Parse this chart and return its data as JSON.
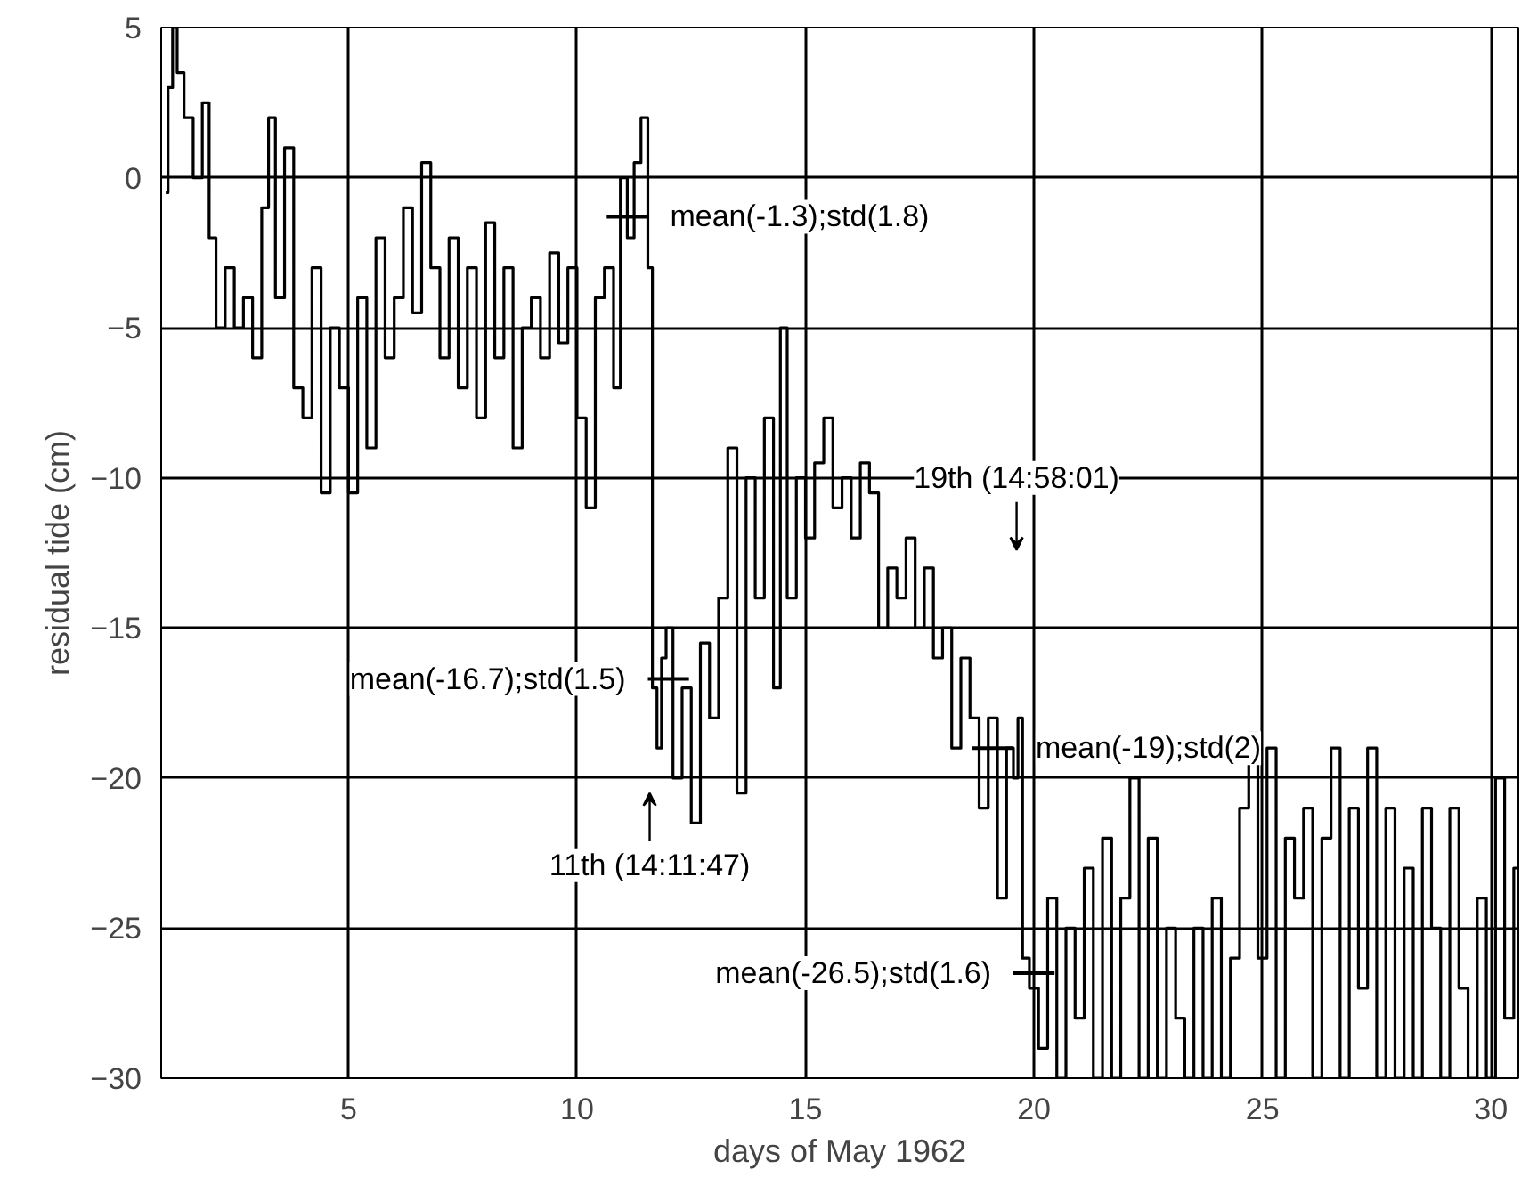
{
  "chart_data": {
    "type": "step",
    "xlabel": "days of May 1962",
    "ylabel": "residual tide (cm)",
    "xlim": [
      0.9,
      30.6
    ],
    "ylim": [
      -30,
      5
    ],
    "xticks": [
      5,
      10,
      15,
      20,
      25,
      30
    ],
    "yticks": [
      -30,
      -25,
      -20,
      -15,
      -10,
      -5,
      0,
      5
    ],
    "grid": true,
    "marker": "none",
    "line_style": "solid",
    "annotations": [
      {
        "text": "mean(-1.3);std(1.8)",
        "x": 11.1,
        "y": -1.3
      },
      {
        "text": "mean(-16.7);std(1.5)",
        "x": 12.0,
        "y": -16.7
      },
      "11th (14:11:47)",
      "19th (14:58:01)",
      {
        "text": "mean(-19);std(2)",
        "x": 19.1,
        "y": -19
      },
      {
        "text": "mean(-26.5);std(1.6)",
        "x": 20.0,
        "y": -26.5
      }
    ],
    "series": [
      {
        "color": "#000000",
        "x": [
          1.0,
          1.1,
          1.2,
          1.3,
          1.5,
          1.7,
          1.9,
          2.0,
          2.2,
          2.4,
          2.6,
          2.8,
          3.0,
          3.2,
          3.3,
          3.5,
          3.7,
          3.9,
          4.1,
          4.3,
          4.5,
          4.7,
          4.9,
          5.1,
          5.3,
          5.5,
          5.7,
          5.9,
          6.1,
          6.3,
          6.5,
          6.7,
          6.9,
          7.1,
          7.3,
          7.5,
          7.7,
          7.9,
          8.1,
          8.3,
          8.5,
          8.7,
          8.9,
          9.1,
          9.3,
          9.5,
          9.7,
          9.9,
          10.1,
          10.3,
          10.5,
          10.7,
          10.9,
          11.0,
          11.2,
          11.3,
          11.5,
          11.6,
          11.7,
          11.8,
          11.9,
          12.0,
          12.2,
          12.4,
          12.6,
          12.8,
          13.0,
          13.2,
          13.4,
          13.6,
          13.8,
          14.0,
          14.2,
          14.4,
          14.5,
          14.7,
          14.9,
          15.1,
          15.3,
          15.5,
          15.7,
          15.9,
          16.1,
          16.3,
          16.5,
          16.7,
          16.9,
          17.1,
          17.3,
          17.5,
          17.7,
          17.9,
          18.1,
          18.3,
          18.5,
          18.7,
          18.9,
          19.1,
          19.3,
          19.5,
          19.6,
          19.7,
          19.8,
          20.0,
          20.2,
          20.4,
          20.6,
          20.8,
          21.0,
          21.2,
          21.4,
          21.6,
          21.8,
          22.0,
          22.2,
          22.4,
          22.6,
          22.8,
          23.0,
          23.2,
          23.4,
          23.6,
          23.8,
          24.0,
          24.2,
          24.4,
          24.6,
          24.8,
          25.0,
          25.2,
          25.4,
          25.6,
          25.8,
          26.0,
          26.2,
          26.4,
          26.6,
          26.8,
          27.0,
          27.2,
          27.4,
          27.6,
          27.8,
          28.0,
          28.2,
          28.4,
          28.6,
          28.8,
          29.0,
          29.2,
          29.4,
          29.6,
          29.8,
          30.0,
          30.2,
          30.4,
          30.6
        ],
        "values": [
          -0.5,
          3,
          5,
          3.5,
          2,
          0,
          2.5,
          -2,
          -5,
          -3,
          -5,
          -4,
          -6,
          -1,
          2,
          -4,
          1,
          -7,
          -8,
          -3,
          -10.5,
          -5,
          -7,
          -10.5,
          -4,
          -9,
          -2,
          -6,
          -4,
          -1,
          -4.5,
          0.5,
          -3,
          -6,
          -2,
          -7,
          -3,
          -8,
          -1.5,
          -6,
          -3,
          -9,
          -5,
          -4,
          -6,
          -2.5,
          -5.5,
          -3,
          -8,
          -11,
          -4,
          -3,
          -7,
          0,
          -2,
          0.5,
          2,
          -3,
          -17,
          -19,
          -16,
          -15,
          -20,
          -17,
          -21.5,
          -15.5,
          -18,
          -14,
          -9,
          -20.5,
          -10,
          -14,
          -8,
          -17,
          -5,
          -14,
          -10,
          -12,
          -9.5,
          -8,
          -11,
          -10,
          -12,
          -9.5,
          -10.5,
          -15,
          -13,
          -14,
          -12,
          -15,
          -13,
          -16,
          -15,
          -19,
          -16,
          -18,
          -21,
          -18,
          -24,
          -19,
          -20,
          -18,
          -26,
          -27,
          -29,
          -24,
          -30,
          -25,
          -28,
          -23,
          -30,
          -22,
          -30,
          -24,
          -20,
          -30,
          -22,
          -30,
          -25,
          -28,
          -30,
          -25,
          -30,
          -24,
          -30,
          -26,
          -21,
          -18.5,
          -26,
          -19,
          -30,
          -22,
          -24,
          -21,
          -30,
          -22,
          -19,
          -30,
          -21,
          -27,
          -19,
          -30,
          -21,
          -30,
          -23,
          -30,
          -21,
          -25,
          -30,
          -21,
          -27,
          -30,
          -24,
          -30,
          -20,
          -28,
          -23
        ]
      }
    ]
  }
}
